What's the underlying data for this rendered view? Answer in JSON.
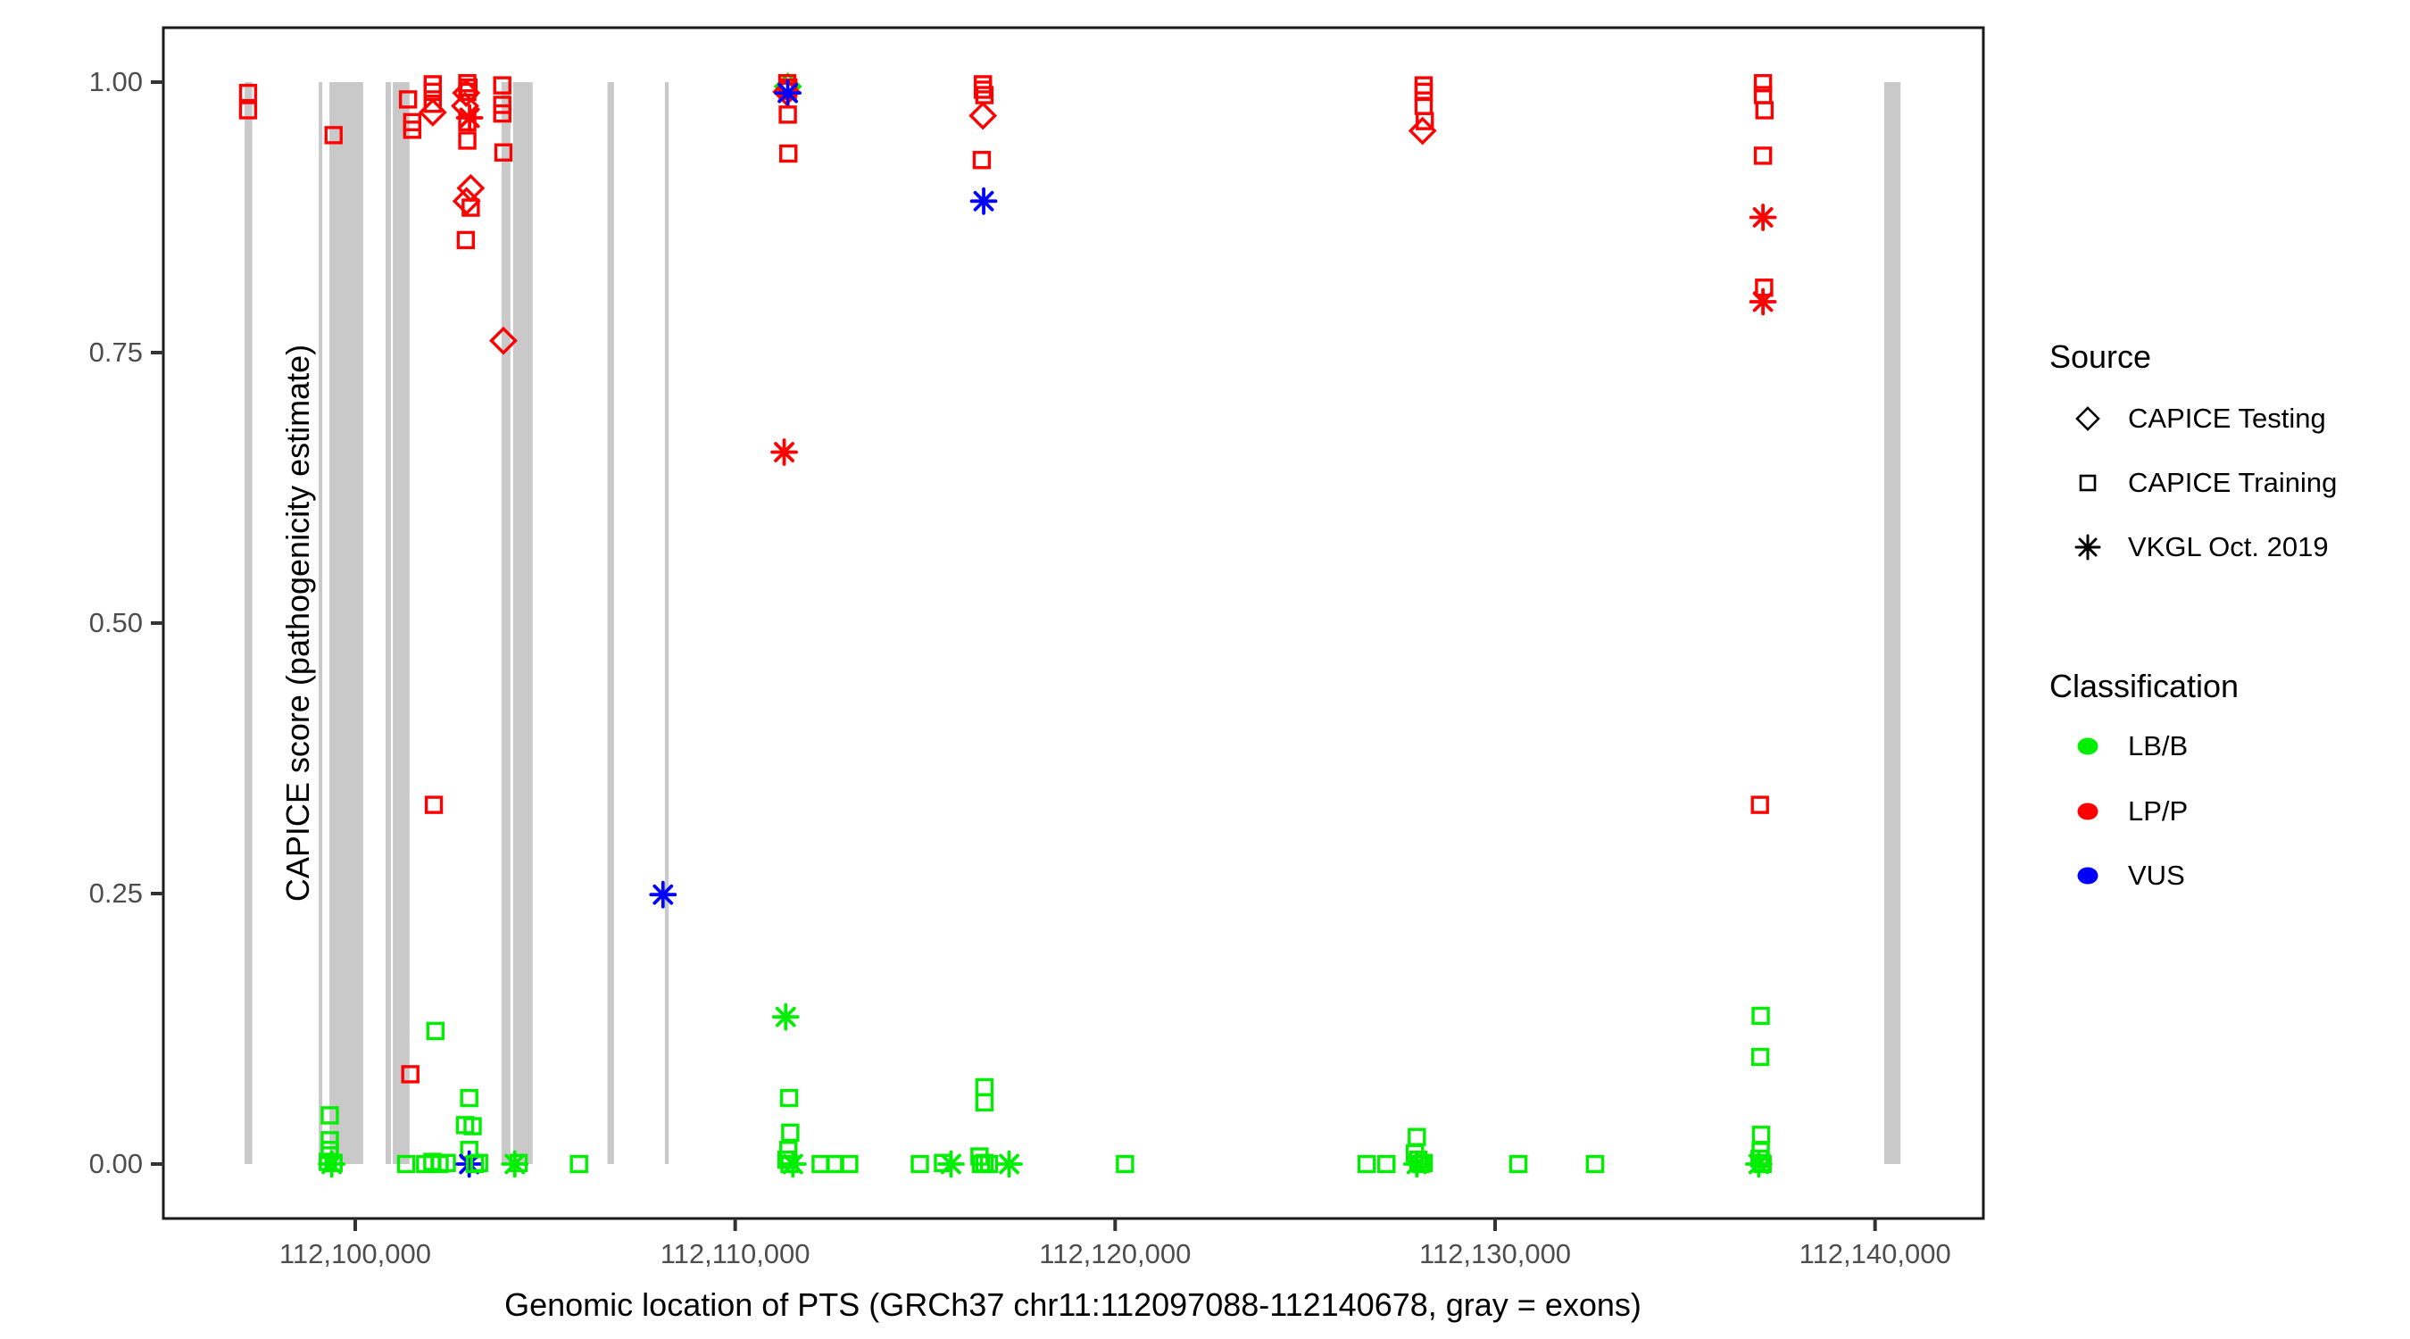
{
  "figure": {
    "background": "#ffffff"
  },
  "axes": {
    "x_title": "Genomic location of PTS (GRCh37 chr11:112097088-112140678, gray = exons)",
    "y_title": "CAPICE score (pathogenicity estimate)"
  },
  "legend": {
    "source": {
      "title": "Source",
      "items": [
        {
          "shape": "diamond",
          "label": "CAPICE Testing"
        },
        {
          "shape": "square",
          "label": "CAPICE Training"
        },
        {
          "shape": "asterisk",
          "label": "VKGL Oct. 2019"
        }
      ]
    },
    "classification": {
      "title": "Classification",
      "items": [
        {
          "color": "#00EE00",
          "label": "LB/B"
        },
        {
          "color": "#FF0000",
          "label": "LP/P"
        },
        {
          "color": "#0000FF",
          "label": "VUS"
        }
      ]
    }
  },
  "chart_data": {
    "type": "scatter",
    "title": "",
    "xlabel": "Genomic location of PTS (GRCh37 chr11:112097088-112140678, gray = exons)",
    "ylabel": "CAPICE score (pathogenicity estimate)",
    "grid": false,
    "legend_position": "right",
    "x_axis_bp_range": [
      112094950,
      112142850
    ],
    "ylim": [
      -0.05,
      1.05
    ],
    "x_ticks": [
      {
        "bp": 112100000,
        "label": "112,100,000"
      },
      {
        "bp": 112110000,
        "label": "112,110,000"
      },
      {
        "bp": 112120000,
        "label": "112,120,000"
      },
      {
        "bp": 112130000,
        "label": "112,130,000"
      },
      {
        "bp": 112140000,
        "label": "112,140,000"
      }
    ],
    "y_ticks": [
      {
        "v": 0.0,
        "label": "0.00"
      },
      {
        "v": 0.25,
        "label": "0.25"
      },
      {
        "v": 0.5,
        "label": "0.50"
      },
      {
        "v": 0.75,
        "label": "0.75"
      },
      {
        "v": 1.0,
        "label": "1.00"
      }
    ],
    "exon_color": "#c9c9c9",
    "class_colors": {
      "R": "#FF0000",
      "G": "#00EE00",
      "B": "#0000FF"
    },
    "shape_key": {
      "sq": "CAPICE Training",
      "di": "CAPICE Testing",
      "as": "VKGL Oct. 2019"
    },
    "color_key": {
      "R": "LP/P",
      "G": "LB/B",
      "B": "VUS"
    },
    "exons_bp": [
      [
        112097090,
        112097290
      ],
      [
        112099040,
        112099130
      ],
      [
        112099320,
        112100210
      ],
      [
        112100800,
        112100940
      ],
      [
        112100990,
        112101430
      ],
      [
        112103850,
        112104085
      ],
      [
        112104155,
        112104670
      ],
      [
        112106640,
        112106810
      ],
      [
        112108150,
        112108250
      ],
      [
        112140240,
        112140670
      ]
    ],
    "points": [
      [
        112097180,
        0.99,
        "sq",
        "R"
      ],
      [
        112097180,
        0.974,
        "sq",
        "R"
      ],
      [
        112099430,
        0.951,
        "sq",
        "R"
      ],
      [
        112099330,
        0.045,
        "sq",
        "G"
      ],
      [
        112099330,
        0.022,
        "sq",
        "G"
      ],
      [
        112099330,
        0.013,
        "sq",
        "G"
      ],
      [
        112099280,
        0.002,
        "sq",
        "G"
      ],
      [
        112099380,
        0.0,
        "as",
        "G"
      ],
      [
        112099430,
        0.001,
        "sq",
        "G"
      ],
      [
        112101390,
        0.984,
        "sq",
        "R"
      ],
      [
        112101500,
        0.963,
        "sq",
        "R"
      ],
      [
        112101500,
        0.956,
        "sq",
        "R"
      ],
      [
        112101450,
        0.083,
        "sq",
        "R"
      ],
      [
        112101340,
        0.0,
        "sq",
        "G"
      ],
      [
        112101840,
        0.0,
        "sq",
        "G"
      ],
      [
        112102030,
        0.002,
        "sq",
        "G"
      ],
      [
        112102220,
        0.0,
        "sq",
        "G"
      ],
      [
        112102410,
        0.001,
        "sq",
        "G"
      ],
      [
        112102110,
        0.123,
        "sq",
        "G"
      ],
      [
        112102070,
        0.332,
        "sq",
        "R"
      ],
      [
        112102040,
        0.998,
        "sq",
        "R"
      ],
      [
        112102040,
        0.991,
        "sq",
        "R"
      ],
      [
        112102040,
        0.98,
        "sq",
        "R"
      ],
      [
        112102040,
        0.972,
        "di",
        "R"
      ],
      [
        112102950,
        0.999,
        "sq",
        "R"
      ],
      [
        112102980,
        0.995,
        "sq",
        "R"
      ],
      [
        112102950,
        0.991,
        "sq",
        "R"
      ],
      [
        112102920,
        0.99,
        "di",
        "R"
      ],
      [
        112102890,
        0.978,
        "di",
        "R"
      ],
      [
        112103010,
        0.967,
        "as",
        "R"
      ],
      [
        112102950,
        0.963,
        "sq",
        "R"
      ],
      [
        112102950,
        0.946,
        "sq",
        "R"
      ],
      [
        112103040,
        0.902,
        "di",
        "R"
      ],
      [
        112102930,
        0.89,
        "di",
        "R"
      ],
      [
        112103040,
        0.884,
        "sq",
        "R"
      ],
      [
        112102910,
        0.854,
        "sq",
        "R"
      ],
      [
        112103000,
        0.061,
        "sq",
        "G"
      ],
      [
        112102890,
        0.036,
        "sq",
        "G"
      ],
      [
        112103090,
        0.035,
        "sq",
        "G"
      ],
      [
        112103000,
        0.013,
        "sq",
        "G"
      ],
      [
        112103000,
        0.0,
        "as",
        "B"
      ],
      [
        112103150,
        0.0,
        "sq",
        "G"
      ],
      [
        112103260,
        0.001,
        "sq",
        "G"
      ],
      [
        112103870,
        0.997,
        "sq",
        "R"
      ],
      [
        112103870,
        0.979,
        "sq",
        "R"
      ],
      [
        112103870,
        0.971,
        "sq",
        "R"
      ],
      [
        112103900,
        0.935,
        "sq",
        "R"
      ],
      [
        112103900,
        0.761,
        "di",
        "R"
      ],
      [
        112104200,
        0.0,
        "as",
        "G"
      ],
      [
        112104300,
        0.001,
        "sq",
        "G"
      ],
      [
        112105890,
        0.0,
        "sq",
        "G"
      ],
      [
        112108100,
        0.249,
        "as",
        "B"
      ],
      [
        112111385,
        0.996,
        "di",
        "G"
      ],
      [
        112111370,
        0.999,
        "sq",
        "R"
      ],
      [
        112111400,
        0.995,
        "sq",
        "R"
      ],
      [
        112111385,
        0.992,
        "sq",
        "R"
      ],
      [
        112111350,
        0.991,
        "di",
        "R"
      ],
      [
        112111385,
        0.99,
        "as",
        "B"
      ],
      [
        112111385,
        0.97,
        "sq",
        "R"
      ],
      [
        112111400,
        0.934,
        "sq",
        "R"
      ],
      [
        112111290,
        0.658,
        "as",
        "R"
      ],
      [
        112111330,
        0.136,
        "as",
        "G"
      ],
      [
        112111420,
        0.061,
        "sq",
        "G"
      ],
      [
        112111450,
        0.029,
        "sq",
        "G"
      ],
      [
        112111400,
        0.013,
        "sq",
        "G"
      ],
      [
        112111350,
        0.004,
        "sq",
        "G"
      ],
      [
        112111430,
        0.0,
        "sq",
        "G"
      ],
      [
        112111520,
        0.0,
        "as",
        "G"
      ],
      [
        112112250,
        0.0,
        "sq",
        "G"
      ],
      [
        112112630,
        0.0,
        "sq",
        "G"
      ],
      [
        112113000,
        0.0,
        "sq",
        "G"
      ],
      [
        112114860,
        0.0,
        "sq",
        "G"
      ],
      [
        112115470,
        0.001,
        "sq",
        "G"
      ],
      [
        112115680,
        0.0,
        "as",
        "G"
      ],
      [
        112116520,
        0.998,
        "sq",
        "R"
      ],
      [
        112116520,
        0.993,
        "sq",
        "R"
      ],
      [
        112116560,
        0.988,
        "sq",
        "R"
      ],
      [
        112116520,
        0.969,
        "di",
        "R"
      ],
      [
        112116490,
        0.928,
        "sq",
        "R"
      ],
      [
        112116540,
        0.89,
        "as",
        "B"
      ],
      [
        112116560,
        0.071,
        "sq",
        "G"
      ],
      [
        112116560,
        0.057,
        "sq",
        "G"
      ],
      [
        112116430,
        0.007,
        "sq",
        "G"
      ],
      [
        112116470,
        0.0,
        "sq",
        "G"
      ],
      [
        112116560,
        0.001,
        "sq",
        "G"
      ],
      [
        112116680,
        0.0,
        "sq",
        "G"
      ],
      [
        112117210,
        0.0,
        "as",
        "G"
      ],
      [
        112120260,
        0.0,
        "sq",
        "G"
      ],
      [
        112126620,
        0.0,
        "sq",
        "G"
      ],
      [
        112127140,
        0.0,
        "sq",
        "G"
      ],
      [
        112128120,
        0.997,
        "sq",
        "R"
      ],
      [
        112128120,
        0.991,
        "sq",
        "R"
      ],
      [
        112128120,
        0.978,
        "sq",
        "R"
      ],
      [
        112128150,
        0.964,
        "sq",
        "R"
      ],
      [
        112128090,
        0.955,
        "di",
        "R"
      ],
      [
        112127940,
        0.025,
        "sq",
        "G"
      ],
      [
        112127890,
        0.01,
        "sq",
        "G"
      ],
      [
        112127980,
        0.004,
        "sq",
        "G"
      ],
      [
        112127940,
        0.0,
        "as",
        "G"
      ],
      [
        112128040,
        0.0,
        "sq",
        "G"
      ],
      [
        112128120,
        0.001,
        "sq",
        "G"
      ],
      [
        112130610,
        0.0,
        "sq",
        "G"
      ],
      [
        112132630,
        0.0,
        "sq",
        "G"
      ],
      [
        112137050,
        0.999,
        "sq",
        "R"
      ],
      [
        112137050,
        0.988,
        "sq",
        "R"
      ],
      [
        112137090,
        0.974,
        "sq",
        "R"
      ],
      [
        112137050,
        0.932,
        "sq",
        "R"
      ],
      [
        112137050,
        0.875,
        "as",
        "R"
      ],
      [
        112137080,
        0.81,
        "sq",
        "R"
      ],
      [
        112137050,
        0.797,
        "as",
        "R"
      ],
      [
        112136970,
        0.332,
        "sq",
        "R"
      ],
      [
        112136990,
        0.137,
        "sq",
        "G"
      ],
      [
        112136980,
        0.099,
        "sq",
        "G"
      ],
      [
        112137000,
        0.027,
        "sq",
        "G"
      ],
      [
        112136990,
        0.012,
        "sq",
        "G"
      ],
      [
        112136960,
        0.005,
        "sq",
        "G"
      ],
      [
        112137010,
        0.001,
        "sq",
        "G"
      ],
      [
        112137040,
        0.0,
        "sq",
        "G"
      ],
      [
        112136940,
        0.0,
        "as",
        "G"
      ]
    ]
  }
}
